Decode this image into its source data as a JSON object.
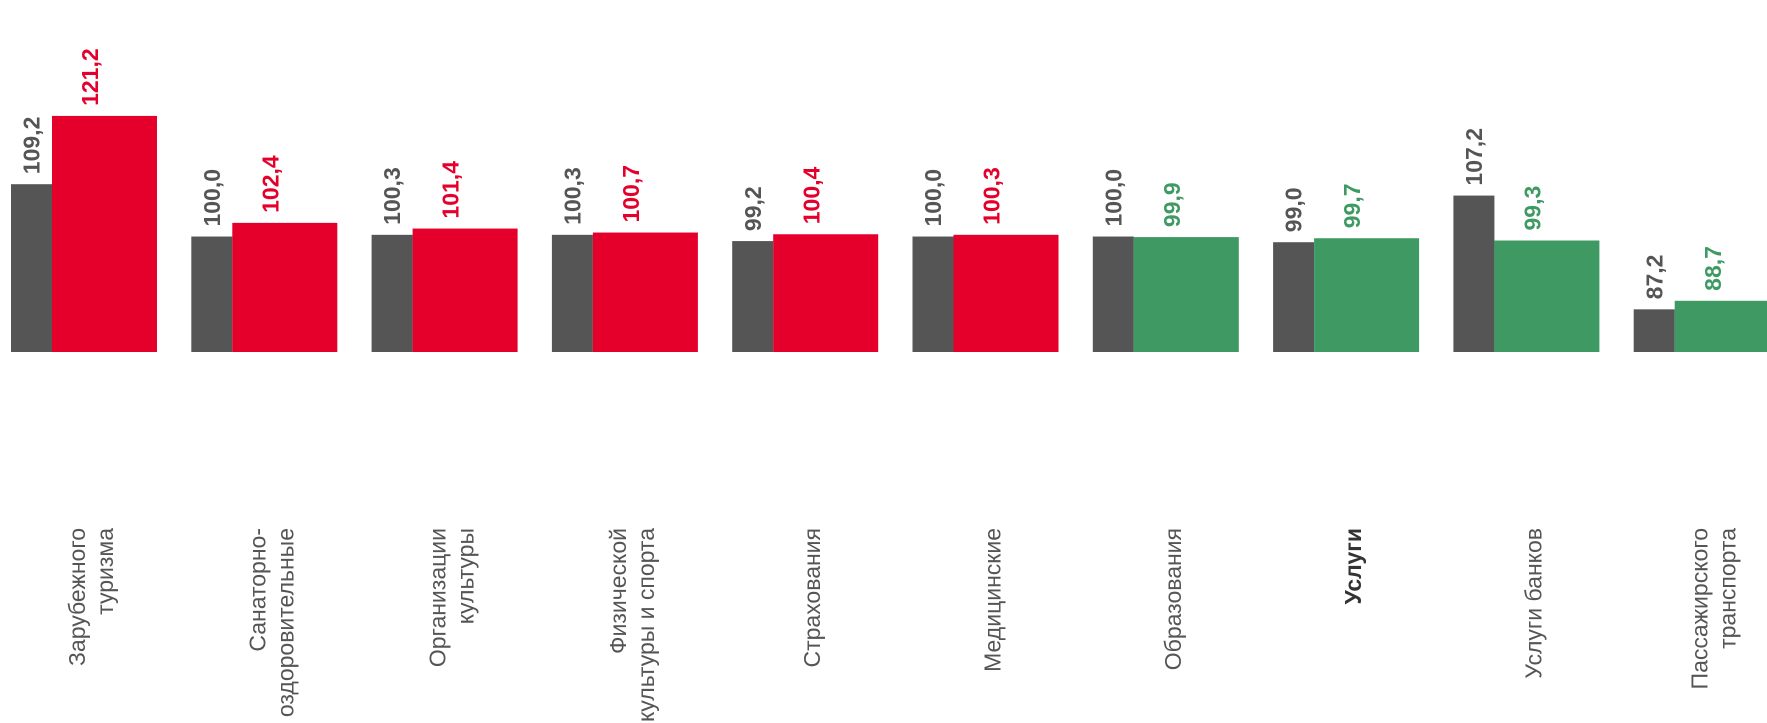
{
  "chart_data": {
    "type": "bar",
    "categories": [
      "Зарубежного туризма",
      "Санаторно-оздоровительные",
      "Организации культуры",
      "Физической культуры и спорта",
      "Страхования",
      "Медицинские",
      "Образования",
      "Услуги",
      "Услуги банков",
      "Пассажирского транспорта"
    ],
    "emphasized": [
      7
    ],
    "series": [
      {
        "color": "#555555",
        "values": [
          109.2,
          100.0,
          100.3,
          100.3,
          99.2,
          100.0,
          100.0,
          99.0,
          107.2,
          87.2
        ],
        "value_labels": [
          "109,2",
          "100,0",
          "100,3",
          "100,3",
          "99,2",
          "100,0",
          "100,0",
          "99,0",
          "107,2",
          "87,2"
        ]
      },
      {
        "colors": [
          "#e4002b",
          "#e4002b",
          "#e4002b",
          "#e4002b",
          "#e4002b",
          "#e4002b",
          "#3e9a62",
          "#3e9a62",
          "#3e9a62",
          "#3e9a62"
        ],
        "values": [
          121.2,
          102.4,
          101.4,
          100.7,
          100.4,
          100.3,
          99.9,
          99.7,
          99.3,
          88.7
        ],
        "value_labels": [
          "121,2",
          "102,4",
          "101,4",
          "100,7",
          "100,4",
          "100,3",
          "99,9",
          "99,7",
          "99,3",
          "88,7"
        ]
      }
    ],
    "ylim": [
      79.7,
      124
    ]
  }
}
